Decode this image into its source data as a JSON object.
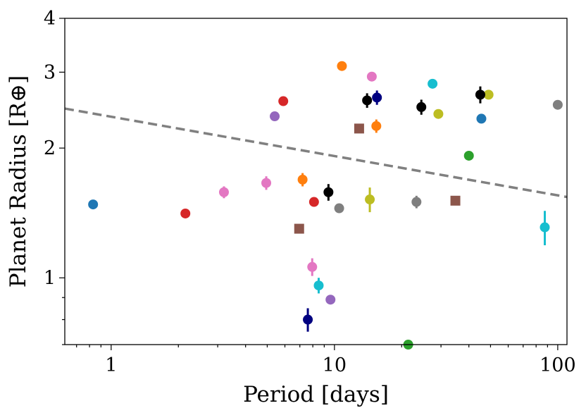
{
  "chart_data": {
    "type": "scatter",
    "xscale": "log",
    "yscale": "log",
    "xlim": [
      0.62,
      110
    ],
    "ylim": [
      0.7,
      4
    ],
    "xlabel": "Period [days]",
    "ylabel": "Planet Radius [R⊕]",
    "xticks": [
      {
        "value": 1,
        "label": "1"
      },
      {
        "value": 10,
        "label": "10"
      },
      {
        "value": 100,
        "label": "100"
      }
    ],
    "yticks": [
      {
        "value": 1,
        "label": "1"
      },
      {
        "value": 2,
        "label": "2"
      },
      {
        "value": 3,
        "label": "3"
      },
      {
        "value": 4,
        "label": "4"
      }
    ],
    "grid": false,
    "reference_line": {
      "style": "dashed",
      "color": "#808080",
      "points": [
        {
          "x": 0.62,
          "y": 2.47
        },
        {
          "x": 110,
          "y": 1.54
        }
      ]
    },
    "points": [
      {
        "x": 0.83,
        "y": 1.48,
        "err": 0.0,
        "color": "#1f77b4",
        "marker": "circle"
      },
      {
        "x": 45.5,
        "y": 2.34,
        "err": 0.0,
        "color": "#1f77b4",
        "marker": "circle"
      },
      {
        "x": 10.8,
        "y": 3.1,
        "err": 0.06,
        "color": "#ff7f0e",
        "marker": "circle"
      },
      {
        "x": 15.4,
        "y": 2.25,
        "err": 0.08,
        "color": "#ff7f0e",
        "marker": "circle"
      },
      {
        "x": 7.2,
        "y": 1.69,
        "err": 0.06,
        "color": "#ff7f0e",
        "marker": "circle"
      },
      {
        "x": 40.0,
        "y": 1.92,
        "err": 0.0,
        "color": "#2ca02c",
        "marker": "circle"
      },
      {
        "x": 21.4,
        "y": 0.7,
        "err": 0.0,
        "color": "#2ca02c",
        "marker": "circle"
      },
      {
        "x": 5.9,
        "y": 2.57,
        "err": 0.0,
        "color": "#d62728",
        "marker": "circle"
      },
      {
        "x": 2.15,
        "y": 1.41,
        "err": 0.0,
        "color": "#d62728",
        "marker": "circle"
      },
      {
        "x": 8.1,
        "y": 1.5,
        "err": 0.0,
        "color": "#d62728",
        "marker": "circle"
      },
      {
        "x": 5.4,
        "y": 2.37,
        "err": 0.0,
        "color": "#9467bd",
        "marker": "circle"
      },
      {
        "x": 9.6,
        "y": 0.89,
        "err": 0.0,
        "color": "#9467bd",
        "marker": "circle"
      },
      {
        "x": 12.9,
        "y": 2.22,
        "err": 0.0,
        "color": "#8c564b",
        "marker": "square"
      },
      {
        "x": 6.95,
        "y": 1.3,
        "err": 0.0,
        "color": "#8c564b",
        "marker": "square"
      },
      {
        "x": 34.8,
        "y": 1.51,
        "err": 0.0,
        "color": "#8c564b",
        "marker": "square"
      },
      {
        "x": 14.7,
        "y": 2.93,
        "err": 0.07,
        "color": "#e377c2",
        "marker": "circle"
      },
      {
        "x": 3.2,
        "y": 1.58,
        "err": 0.05,
        "color": "#e377c2",
        "marker": "circle"
      },
      {
        "x": 4.95,
        "y": 1.66,
        "err": 0.06,
        "color": "#e377c2",
        "marker": "circle"
      },
      {
        "x": 7.95,
        "y": 1.06,
        "err": 0.05,
        "color": "#e377c2",
        "marker": "circle"
      },
      {
        "x": 10.5,
        "y": 1.45,
        "err": 0.0,
        "color": "#7f7f7f",
        "marker": "circle"
      },
      {
        "x": 23.3,
        "y": 1.5,
        "err": 0.05,
        "color": "#7f7f7f",
        "marker": "circle"
      },
      {
        "x": 100.0,
        "y": 2.52,
        "err": 0.0,
        "color": "#7f7f7f",
        "marker": "circle"
      },
      {
        "x": 14.4,
        "y": 1.52,
        "err": 0.1,
        "color": "#bcbd22",
        "marker": "circle"
      },
      {
        "x": 29.2,
        "y": 2.4,
        "err": 0.0,
        "color": "#bcbd22",
        "marker": "circle"
      },
      {
        "x": 49.0,
        "y": 2.66,
        "err": 0.0,
        "color": "#bcbd22",
        "marker": "circle"
      },
      {
        "x": 27.5,
        "y": 2.82,
        "err": 0.0,
        "color": "#17becf",
        "marker": "circle"
      },
      {
        "x": 8.5,
        "y": 0.96,
        "err": 0.04,
        "color": "#17becf",
        "marker": "circle"
      },
      {
        "x": 87.5,
        "y": 1.31,
        "err": 0.12,
        "color": "#17becf",
        "marker": "circle"
      },
      {
        "x": 15.5,
        "y": 2.62,
        "err": 0.1,
        "color": "#000080",
        "marker": "circle"
      },
      {
        "x": 7.6,
        "y": 0.8,
        "err": 0.05,
        "color": "#000080",
        "marker": "circle"
      },
      {
        "x": 14.0,
        "y": 2.58,
        "err": 0.1,
        "color": "#000000",
        "marker": "circle"
      },
      {
        "x": 24.5,
        "y": 2.49,
        "err": 0.1,
        "color": "#000000",
        "marker": "circle"
      },
      {
        "x": 45.0,
        "y": 2.66,
        "err": 0.12,
        "color": "#000000",
        "marker": "circle"
      },
      {
        "x": 9.4,
        "y": 1.58,
        "err": 0.07,
        "color": "#000000",
        "marker": "circle"
      }
    ]
  }
}
